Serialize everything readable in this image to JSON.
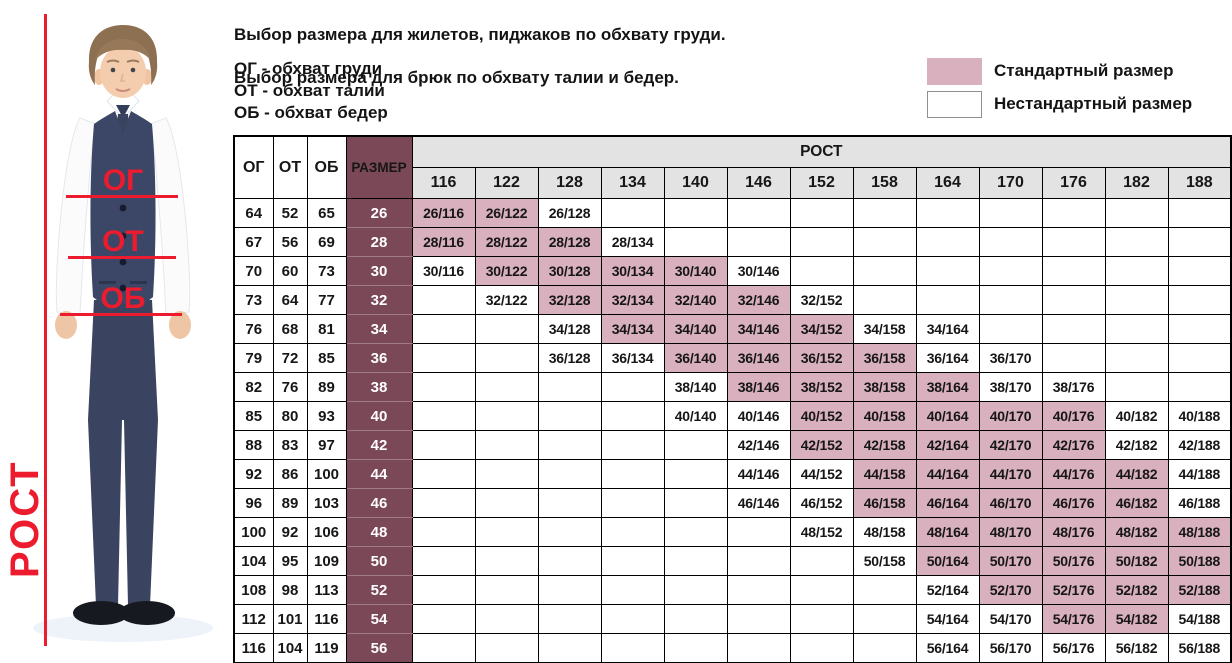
{
  "intro": {
    "line1": "Выбор размера для жилетов, пиджаков по обхвату груди.",
    "line2": "Выбор размера для брюк по обхвату талии и бедер.",
    "abbr_chest": "ОГ - обхват груди",
    "abbr_waist": "ОТ - обхват талии",
    "abbr_hip": "ОБ - обхват бедер"
  },
  "legend": {
    "standard_label": "Стандартный размер",
    "nonstandard_label": "Нестандартный размер",
    "standard_color": "#d9b0bd",
    "nonstandard_color": "#ffffff"
  },
  "figure": {
    "height_label": "РОСТ",
    "chest_label": "ОГ",
    "waist_label": "ОТ",
    "hip_label": "ОБ",
    "accent_color": "#ed1b2e"
  },
  "table": {
    "col_headers": {
      "og": "ОГ",
      "ot": "ОТ",
      "ob": "ОБ",
      "size": "РАЗМЕР",
      "rost": "РОСТ"
    },
    "heights": [
      116,
      122,
      128,
      134,
      140,
      146,
      152,
      158,
      164,
      170,
      176,
      182,
      188
    ],
    "colors": {
      "size_bg": "#7b4858",
      "standard_bg": "#d9b0bd",
      "header_bg": "#e3e3e3"
    },
    "rows": [
      {
        "og": 64,
        "ot": 52,
        "ob": 65,
        "size": 26,
        "cells": [
          {
            "v": "26/116",
            "std": true
          },
          {
            "v": "26/122",
            "std": true
          },
          {
            "v": "26/128",
            "std": false
          },
          null,
          null,
          null,
          null,
          null,
          null,
          null,
          null,
          null,
          null
        ]
      },
      {
        "og": 67,
        "ot": 56,
        "ob": 69,
        "size": 28,
        "cells": [
          {
            "v": "28/116",
            "std": true
          },
          {
            "v": "28/122",
            "std": true
          },
          {
            "v": "28/128",
            "std": true
          },
          {
            "v": "28/134",
            "std": false
          },
          null,
          null,
          null,
          null,
          null,
          null,
          null,
          null,
          null
        ]
      },
      {
        "og": 70,
        "ot": 60,
        "ob": 73,
        "size": 30,
        "cells": [
          {
            "v": "30/116",
            "std": false
          },
          {
            "v": "30/122",
            "std": true
          },
          {
            "v": "30/128",
            "std": true
          },
          {
            "v": "30/134",
            "std": true
          },
          {
            "v": "30/140",
            "std": true
          },
          {
            "v": "30/146",
            "std": false
          },
          null,
          null,
          null,
          null,
          null,
          null,
          null
        ]
      },
      {
        "og": 73,
        "ot": 64,
        "ob": 77,
        "size": 32,
        "cells": [
          null,
          {
            "v": "32/122",
            "std": false
          },
          {
            "v": "32/128",
            "std": true
          },
          {
            "v": "32/134",
            "std": true
          },
          {
            "v": "32/140",
            "std": true
          },
          {
            "v": "32/146",
            "std": true
          },
          {
            "v": "32/152",
            "std": false
          },
          null,
          null,
          null,
          null,
          null,
          null
        ]
      },
      {
        "og": 76,
        "ot": 68,
        "ob": 81,
        "size": 34,
        "cells": [
          null,
          null,
          {
            "v": "34/128",
            "std": false
          },
          {
            "v": "34/134",
            "std": true
          },
          {
            "v": "34/140",
            "std": true
          },
          {
            "v": "34/146",
            "std": true
          },
          {
            "v": "34/152",
            "std": true
          },
          {
            "v": "34/158",
            "std": false
          },
          {
            "v": "34/164",
            "std": false
          },
          null,
          null,
          null,
          null
        ]
      },
      {
        "og": 79,
        "ot": 72,
        "ob": 85,
        "size": 36,
        "cells": [
          null,
          null,
          {
            "v": "36/128",
            "std": false
          },
          {
            "v": "36/134",
            "std": false
          },
          {
            "v": "36/140",
            "std": true
          },
          {
            "v": "36/146",
            "std": true
          },
          {
            "v": "36/152",
            "std": true
          },
          {
            "v": "36/158",
            "std": true
          },
          {
            "v": "36/164",
            "std": false
          },
          {
            "v": "36/170",
            "std": false
          },
          null,
          null,
          null
        ]
      },
      {
        "og": 82,
        "ot": 76,
        "ob": 89,
        "size": 38,
        "cells": [
          null,
          null,
          null,
          null,
          {
            "v": "38/140",
            "std": false
          },
          {
            "v": "38/146",
            "std": true
          },
          {
            "v": "38/152",
            "std": true
          },
          {
            "v": "38/158",
            "std": true
          },
          {
            "v": "38/164",
            "std": true
          },
          {
            "v": "38/170",
            "std": false
          },
          {
            "v": "38/176",
            "std": false
          },
          null,
          null
        ]
      },
      {
        "og": 85,
        "ot": 80,
        "ob": 93,
        "size": 40,
        "cells": [
          null,
          null,
          null,
          null,
          {
            "v": "40/140",
            "std": false
          },
          {
            "v": "40/146",
            "std": false
          },
          {
            "v": "40/152",
            "std": true
          },
          {
            "v": "40/158",
            "std": true
          },
          {
            "v": "40/164",
            "std": true
          },
          {
            "v": "40/170",
            "std": true
          },
          {
            "v": "40/176",
            "std": true
          },
          {
            "v": "40/182",
            "std": false
          },
          {
            "v": "40/188",
            "std": false
          }
        ]
      },
      {
        "og": 88,
        "ot": 83,
        "ob": 97,
        "size": 42,
        "cells": [
          null,
          null,
          null,
          null,
          null,
          {
            "v": "42/146",
            "std": false
          },
          {
            "v": "42/152",
            "std": true
          },
          {
            "v": "42/158",
            "std": true
          },
          {
            "v": "42/164",
            "std": true
          },
          {
            "v": "42/170",
            "std": true
          },
          {
            "v": "42/176",
            "std": true
          },
          {
            "v": "42/182",
            "std": false
          },
          {
            "v": "42/188",
            "std": false
          }
        ]
      },
      {
        "og": 92,
        "ot": 86,
        "ob": 100,
        "size": 44,
        "cells": [
          null,
          null,
          null,
          null,
          null,
          {
            "v": "44/146",
            "std": false
          },
          {
            "v": "44/152",
            "std": false
          },
          {
            "v": "44/158",
            "std": true
          },
          {
            "v": "44/164",
            "std": true
          },
          {
            "v": "44/170",
            "std": true
          },
          {
            "v": "44/176",
            "std": true
          },
          {
            "v": "44/182",
            "std": true
          },
          {
            "v": "44/188",
            "std": false
          }
        ]
      },
      {
        "og": 96,
        "ot": 89,
        "ob": 103,
        "size": 46,
        "cells": [
          null,
          null,
          null,
          null,
          null,
          {
            "v": "46/146",
            "std": false
          },
          {
            "v": "46/152",
            "std": false
          },
          {
            "v": "46/158",
            "std": true
          },
          {
            "v": "46/164",
            "std": true
          },
          {
            "v": "46/170",
            "std": true
          },
          {
            "v": "46/176",
            "std": true
          },
          {
            "v": "46/182",
            "std": true
          },
          {
            "v": "46/188",
            "std": false
          }
        ]
      },
      {
        "og": 100,
        "ot": 92,
        "ob": 106,
        "size": 48,
        "cells": [
          null,
          null,
          null,
          null,
          null,
          null,
          {
            "v": "48/152",
            "std": false
          },
          {
            "v": "48/158",
            "std": false
          },
          {
            "v": "48/164",
            "std": true
          },
          {
            "v": "48/170",
            "std": true
          },
          {
            "v": "48/176",
            "std": true
          },
          {
            "v": "48/182",
            "std": true
          },
          {
            "v": "48/188",
            "std": true
          }
        ]
      },
      {
        "og": 104,
        "ot": 95,
        "ob": 109,
        "size": 50,
        "cells": [
          null,
          null,
          null,
          null,
          null,
          null,
          null,
          {
            "v": "50/158",
            "std": false
          },
          {
            "v": "50/164",
            "std": true
          },
          {
            "v": "50/170",
            "std": true
          },
          {
            "v": "50/176",
            "std": true
          },
          {
            "v": "50/182",
            "std": true
          },
          {
            "v": "50/188",
            "std": true
          }
        ]
      },
      {
        "og": 108,
        "ot": 98,
        "ob": 113,
        "size": 52,
        "cells": [
          null,
          null,
          null,
          null,
          null,
          null,
          null,
          null,
          {
            "v": "52/164",
            "std": false
          },
          {
            "v": "52/170",
            "std": true
          },
          {
            "v": "52/176",
            "std": true
          },
          {
            "v": "52/182",
            "std": true
          },
          {
            "v": "52/188",
            "std": true
          }
        ]
      },
      {
        "og": 112,
        "ot": 101,
        "ob": 116,
        "size": 54,
        "cells": [
          null,
          null,
          null,
          null,
          null,
          null,
          null,
          null,
          {
            "v": "54/164",
            "std": false
          },
          {
            "v": "54/170",
            "std": false
          },
          {
            "v": "54/176",
            "std": true
          },
          {
            "v": "54/182",
            "std": true
          },
          {
            "v": "54/188",
            "std": false
          }
        ]
      },
      {
        "og": 116,
        "ot": 104,
        "ob": 119,
        "size": 56,
        "cells": [
          null,
          null,
          null,
          null,
          null,
          null,
          null,
          null,
          {
            "v": "56/164",
            "std": false
          },
          {
            "v": "56/170",
            "std": false
          },
          {
            "v": "56/176",
            "std": false
          },
          {
            "v": "56/182",
            "std": false
          },
          {
            "v": "56/188",
            "std": false
          }
        ]
      }
    ]
  }
}
